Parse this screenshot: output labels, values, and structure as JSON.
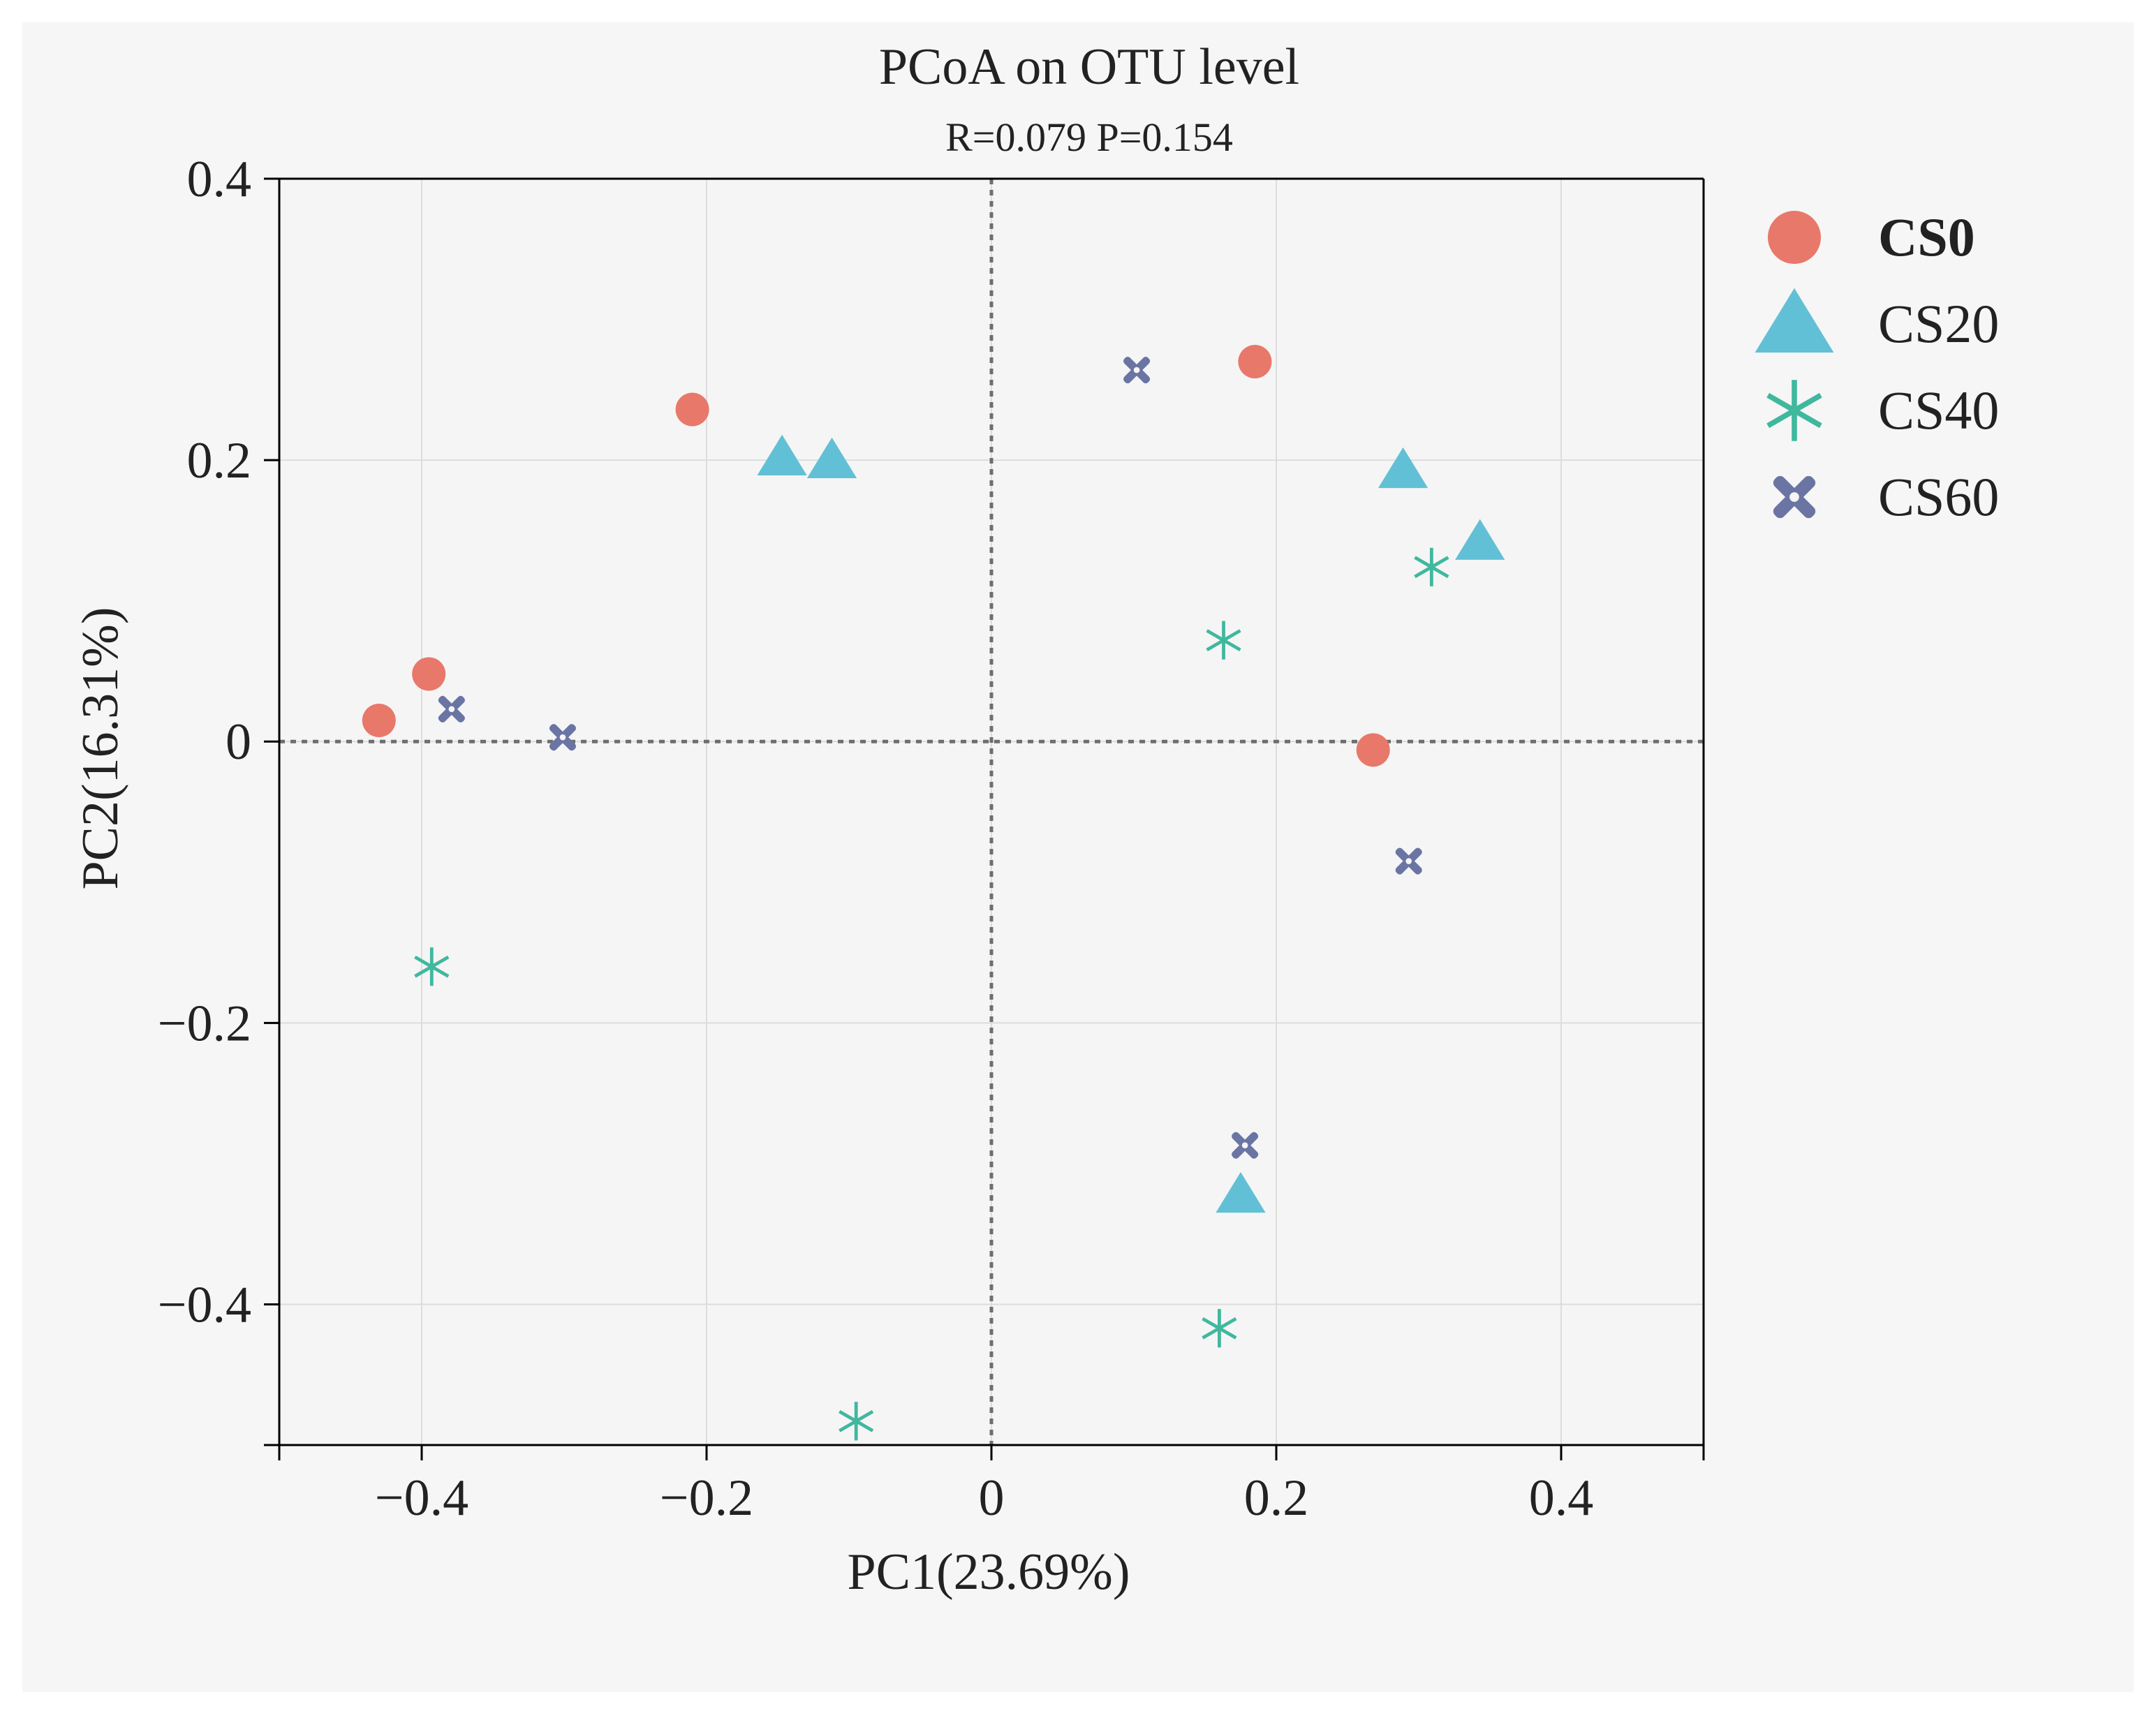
{
  "chart_data": {
    "type": "scatter",
    "title": "PCoA on OTU level",
    "subtitle": "R=0.079  P=0.154",
    "xlabel": "PC1(23.69%)",
    "ylabel": "PC2(16.31%)",
    "xlim": [
      -0.5,
      0.5
    ],
    "ylim": [
      -0.5,
      0.4
    ],
    "xticks": [
      -0.4,
      -0.2,
      0,
      0.2,
      0.4
    ],
    "xtick_labels": [
      "−0.4",
      "−0.2",
      "0",
      "0.2",
      "0.4"
    ],
    "yticks": [
      0.4,
      0.2,
      0,
      -0.2,
      -0.4
    ],
    "ytick_labels": [
      "0.4",
      "0.2",
      "0",
      "−0.2",
      "−0.4"
    ],
    "grid": true,
    "reference_lines": {
      "x": 0,
      "y": 0
    },
    "legend_position": "right",
    "background": "#f6f6f6",
    "plot_background": "#f5f5f5",
    "series": [
      {
        "name": "CS0",
        "marker": "circle",
        "color": "#e8786a",
        "points": [
          [
            -0.43,
            0.015
          ],
          [
            -0.395,
            0.048
          ],
          [
            -0.21,
            0.236
          ],
          [
            0.185,
            0.27
          ],
          [
            0.268,
            -0.006
          ]
        ]
      },
      {
        "name": "CS20",
        "marker": "triangle",
        "color": "#62c0d6",
        "points": [
          [
            -0.147,
            0.202
          ],
          [
            -0.112,
            0.2
          ],
          [
            0.289,
            0.193
          ],
          [
            0.343,
            0.142
          ],
          [
            0.175,
            -0.322
          ]
        ]
      },
      {
        "name": "CS40",
        "marker": "asterisk",
        "color": "#3fb89e",
        "points": [
          [
            -0.393,
            -0.16
          ],
          [
            -0.095,
            -0.483
          ],
          [
            0.163,
            0.072
          ],
          [
            0.16,
            -0.417
          ],
          [
            0.309,
            0.124
          ]
        ]
      },
      {
        "name": "CS60",
        "marker": "x",
        "color": "#6a75a4",
        "points": [
          [
            -0.379,
            0.023
          ],
          [
            -0.301,
            0.003
          ],
          [
            0.102,
            0.264
          ],
          [
            0.178,
            -0.287
          ],
          [
            0.293,
            -0.085
          ]
        ]
      }
    ]
  }
}
